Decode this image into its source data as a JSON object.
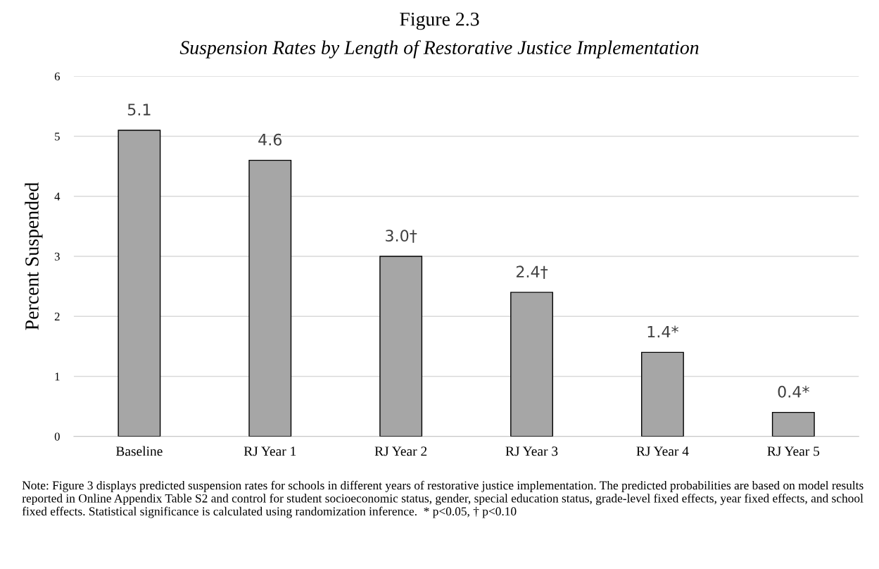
{
  "chart_data": {
    "type": "bar",
    "title": "Figure 2.3",
    "subtitle": "Suspension Rates by Length of Restorative Justice Implementation",
    "ylabel": "Percent Suspended",
    "categories": [
      "Baseline",
      "RJ Year 1",
      "RJ Year 2",
      "RJ Year 3",
      "RJ Year 4",
      "RJ Year 5"
    ],
    "values": [
      5.1,
      4.6,
      3.0,
      2.4,
      1.4,
      0.4
    ],
    "value_labels": [
      "5.1",
      "4.6",
      "3.0†",
      "2.4†",
      "1.4*",
      "0.4*"
    ],
    "color": "#a6a6a6",
    "ylim": [
      0,
      6
    ],
    "yticks": [
      0,
      1,
      2,
      3,
      4,
      5,
      6
    ],
    "grid": "y",
    "annotations": [
      "Note: Figure 3 displays predicted suspension rates for schools in different years of restorative justice implementation. The predicted probabilities are based on model results reported in Online Appendix Table S2 and control for student socioeconomic status, gender, special education status, grade-level fixed effects, year fixed effects, and school fixed effects. Statistical significance is calculated using randomization inference.  * p<0.05, † p<0.10"
    ]
  }
}
